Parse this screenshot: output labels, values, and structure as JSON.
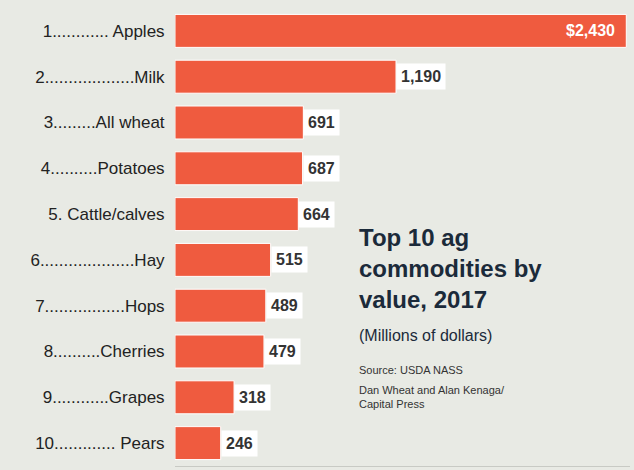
{
  "chart_data": {
    "type": "bar",
    "orientation": "horizontal",
    "title": "Top 10 ag commodities by value, 2017",
    "subtitle": "(Millions of dollars)",
    "annotations": [
      "Source: USDA NASS",
      "Dan Wheat and Alan Kenaga/ Capital Press"
    ],
    "categories": [
      "1............ Apples",
      "2...................Milk",
      "3.........All wheat",
      "4..........Potatoes",
      "5. Cattle/calves",
      "6....................Hay",
      "7.................Hops",
      "8..........Cherries",
      "9............Grapes",
      "10............. Pears"
    ],
    "values": [
      2430,
      1190,
      691,
      687,
      664,
      515,
      489,
      479,
      318,
      246
    ],
    "value_labels": [
      "$2,430",
      "1,190",
      "691",
      "687",
      "664",
      "515",
      "489",
      "479",
      "318",
      "246"
    ],
    "data_labels": true,
    "color": "#ef5b3f",
    "xlim": [
      0,
      2450
    ],
    "xticks": [],
    "tick_labels": "y",
    "grid": false
  }
}
